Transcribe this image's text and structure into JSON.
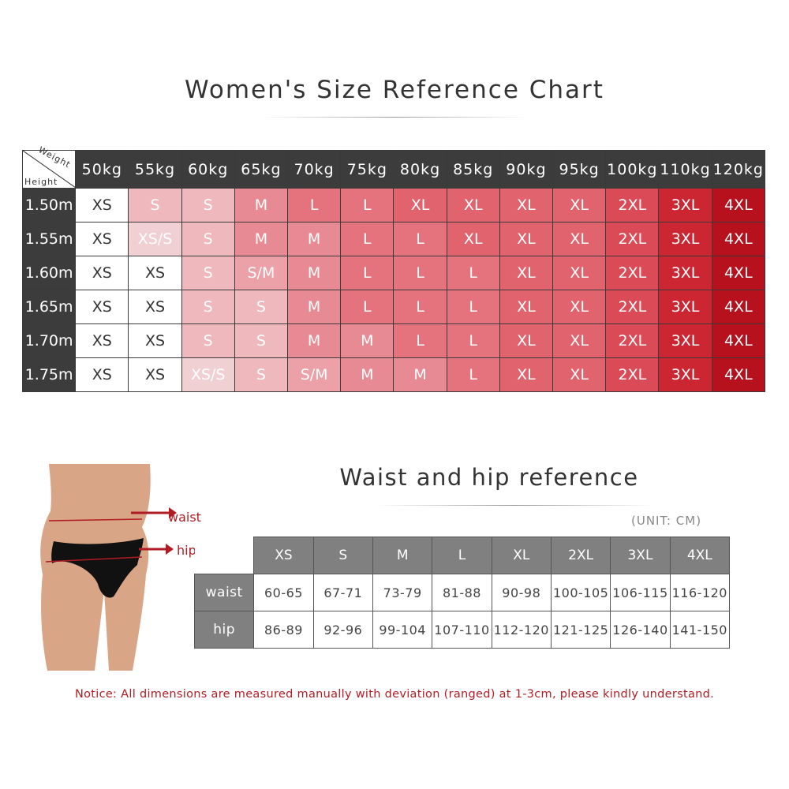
{
  "title": "Women's Size Reference Chart",
  "size_table": {
    "corner_weight": "Weight",
    "corner_height": "Height",
    "weights": [
      "50kg",
      "55kg",
      "60kg",
      "65kg",
      "70kg",
      "75kg",
      "80kg",
      "85kg",
      "90kg",
      "95kg",
      "100kg",
      "110kg",
      "120kg"
    ],
    "rows": [
      {
        "height": "1.50m",
        "sizes": [
          "XS",
          "S",
          "S",
          "M",
          "L",
          "L",
          "XL",
          "XL",
          "XL",
          "XL",
          "2XL",
          "3XL",
          "4XL"
        ]
      },
      {
        "height": "1.55m",
        "sizes": [
          "XS",
          "XS/S",
          "S",
          "M",
          "M",
          "L",
          "L",
          "XL",
          "XL",
          "XL",
          "2XL",
          "3XL",
          "4XL"
        ]
      },
      {
        "height": "1.60m",
        "sizes": [
          "XS",
          "XS",
          "S",
          "S/M",
          "M",
          "L",
          "L",
          "L",
          "XL",
          "XL",
          "2XL",
          "3XL",
          "4XL"
        ]
      },
      {
        "height": "1.65m",
        "sizes": [
          "XS",
          "XS",
          "S",
          "S",
          "M",
          "L",
          "L",
          "L",
          "XL",
          "XL",
          "2XL",
          "3XL",
          "4XL"
        ]
      },
      {
        "height": "1.70m",
        "sizes": [
          "XS",
          "XS",
          "S",
          "S",
          "M",
          "M",
          "L",
          "L",
          "XL",
          "XL",
          "2XL",
          "3XL",
          "4XL"
        ]
      },
      {
        "height": "1.75m",
        "sizes": [
          "XS",
          "XS",
          "XS/S",
          "S",
          "S/M",
          "M",
          "M",
          "L",
          "XL",
          "XL",
          "2XL",
          "3XL",
          "4XL"
        ]
      }
    ],
    "size_colors": {
      "XS": "#ffffff",
      "XS/S": "#f1d0d4",
      "S": "#efb8bd",
      "S/M": "#eca0a7",
      "M": "#e88a93",
      "L": "#e5737e",
      "XL": "#e1636e",
      "2XL": "#da4b57",
      "3XL": "#cc2632",
      "4XL": "#b8111e"
    },
    "header_color": "#3c3c3c"
  },
  "waist_hip": {
    "title": "Waist and hip reference",
    "unit": "(UNIT: CM)",
    "sizes": [
      "XS",
      "S",
      "M",
      "L",
      "XL",
      "2XL",
      "3XL",
      "4XL"
    ],
    "rows": [
      {
        "label": "waist",
        "values": [
          "60-65",
          "67-71",
          "73-79",
          "81-88",
          "90-98",
          "100-105",
          "106-115",
          "116-120"
        ]
      },
      {
        "label": "hip",
        "values": [
          "86-89",
          "92-96",
          "99-104",
          "107-110",
          "112-120",
          "121-125",
          "126-140",
          "141-150"
        ]
      }
    ],
    "figure_labels": {
      "waist": "waist",
      "hip": "hip"
    }
  },
  "notice": "Notice:  All dimensions are measured manually with deviation (ranged) at 1-3cm, please kindly understand.",
  "accent_color": "#b01c24"
}
